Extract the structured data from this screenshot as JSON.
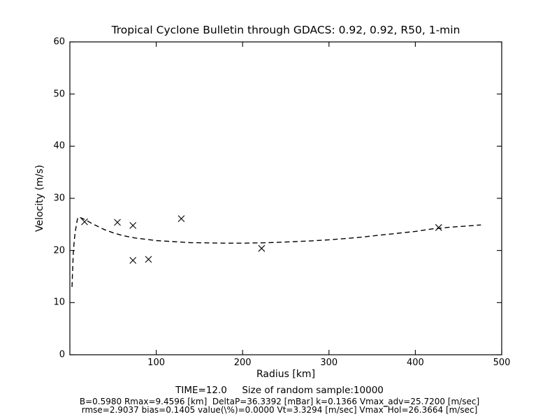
{
  "figure": {
    "background": "#ffffff",
    "frame_color": "#000000"
  },
  "chart_data": {
    "type": "scatter",
    "title": "Tropical Cyclone Bulletin through GDACS: 0.92, 0.92, R50, 1-min",
    "xlabel": "Radius [km]",
    "ylabel": "Velocity (m/s)",
    "xlim": [
      0,
      500
    ],
    "ylim": [
      0,
      60
    ],
    "xticks": [
      100,
      200,
      300,
      400,
      500
    ],
    "yticks": [
      0,
      10,
      20,
      30,
      40,
      50,
      60
    ],
    "grid": false,
    "legend": null,
    "marker": "x",
    "marker_color": "#000000",
    "curve_style": "dashed",
    "curve_color": "#000000",
    "scatter_points": [
      [
        17,
        25.5
      ],
      [
        55,
        25.4
      ],
      [
        73,
        24.8
      ],
      [
        129,
        26.1
      ],
      [
        73,
        18.1
      ],
      [
        91,
        18.3
      ],
      [
        222,
        20.4
      ],
      [
        427,
        24.4
      ]
    ],
    "model_curve": [
      [
        2.5,
        13.0
      ],
      [
        3,
        15.5
      ],
      [
        4,
        19.5
      ],
      [
        5,
        21.8
      ],
      [
        6,
        23.3
      ],
      [
        7.5,
        24.9
      ],
      [
        8.5,
        25.8
      ],
      [
        9.5,
        26.4
      ],
      [
        12,
        26.3
      ],
      [
        15,
        26.1
      ],
      [
        20,
        25.7
      ],
      [
        25,
        25.2
      ],
      [
        30,
        24.8
      ],
      [
        40,
        24.0
      ],
      [
        50,
        23.4
      ],
      [
        60,
        22.9
      ],
      [
        75,
        22.4
      ],
      [
        90,
        22.1
      ],
      [
        100,
        21.9
      ],
      [
        120,
        21.7
      ],
      [
        140,
        21.5
      ],
      [
        160,
        21.45
      ],
      [
        180,
        21.4
      ],
      [
        200,
        21.4
      ],
      [
        220,
        21.45
      ],
      [
        240,
        21.55
      ],
      [
        260,
        21.7
      ],
      [
        280,
        21.85
      ],
      [
        300,
        22.05
      ],
      [
        320,
        22.3
      ],
      [
        340,
        22.6
      ],
      [
        360,
        22.95
      ],
      [
        380,
        23.3
      ],
      [
        400,
        23.65
      ],
      [
        420,
        24.15
      ],
      [
        440,
        24.45
      ],
      [
        460,
        24.7
      ],
      [
        476,
        24.9
      ]
    ],
    "annotations": {
      "line1": "TIME=12.0     Size of random sample:10000",
      "line2": "B=0.5980 Rmax=9.4596 [km]  DeltaP=36.3392 [mBar] k=0.1366 Vmax_adv=25.7200 [m/sec]",
      "line3": "rmse=2.9037 bias=0.1405 value(\\%)=0.0000 Vt=3.3294 [m/sec] Vmax‾Hol=26.3664 [m/sec]"
    }
  }
}
